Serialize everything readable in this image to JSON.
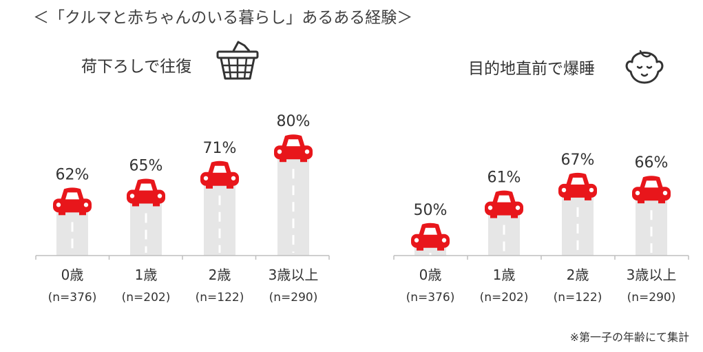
{
  "title": "＜「クルマと赤ちゃんのいる暮らし」あるある経験＞",
  "footnote": "※第一子の年齢にて集計",
  "colors": {
    "car": "#e8161b",
    "road": "#e6e6e6",
    "lane": "#ffffff",
    "text": "#333333"
  },
  "panels": [
    {
      "title": "荷下ろしで往復",
      "icon": "basket-icon"
    },
    {
      "title": "目的地直前で爆睡",
      "icon": "sleeping-baby-icon"
    }
  ],
  "chart_data": [
    {
      "type": "bar",
      "title": "荷下ろしで往復",
      "categories": [
        "0歳",
        "1歳",
        "2歳",
        "3歳以上"
      ],
      "sample_sizes": [
        "(n=376)",
        "(n=202)",
        "(n=122)",
        "(n=290)"
      ],
      "values": [
        62,
        65,
        71,
        80
      ],
      "value_labels": [
        "62%",
        "65%",
        "71%",
        "80%"
      ],
      "unit": "%"
    },
    {
      "type": "bar",
      "title": "目的地直前で爆睡",
      "categories": [
        "0歳",
        "1歳",
        "2歳",
        "3歳以上"
      ],
      "sample_sizes": [
        "(n=376)",
        "(n=202)",
        "(n=122)",
        "(n=290)"
      ],
      "values": [
        50,
        61,
        67,
        66
      ],
      "value_labels": [
        "50%",
        "61%",
        "67%",
        "66%"
      ],
      "unit": "%"
    }
  ]
}
